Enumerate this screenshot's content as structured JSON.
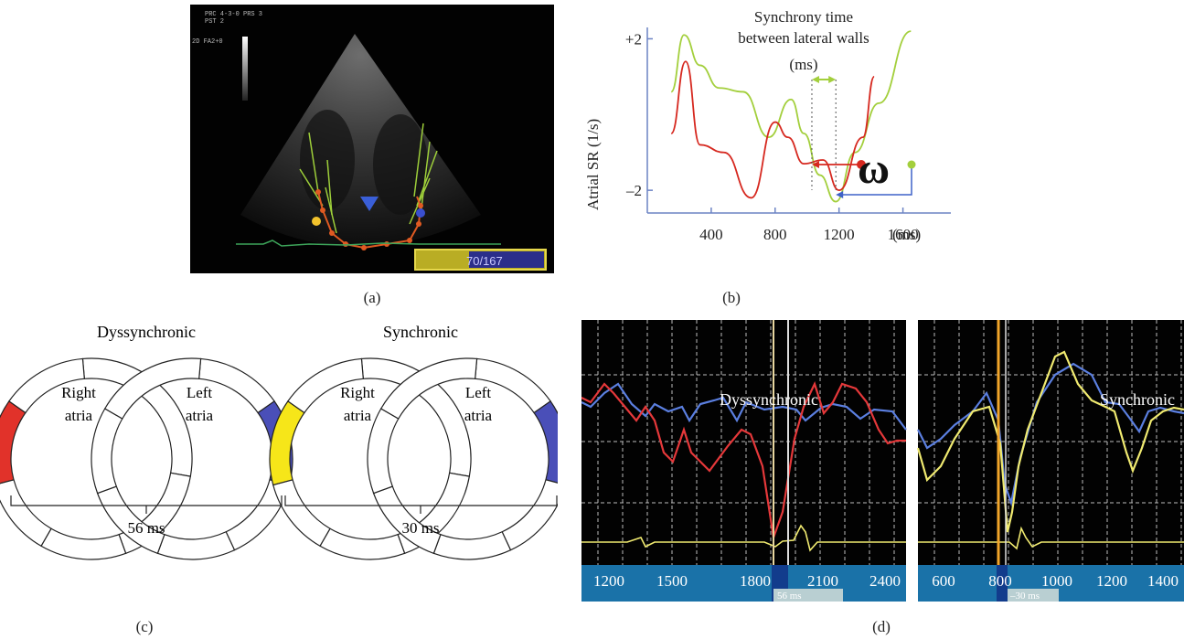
{
  "panel_a": {
    "caption": "(a)",
    "overlay_text_1": "PRC 4-3-0  PRS 3",
    "overlay_text_2": "PST 2",
    "overlay_text_3": "2D FA2+0",
    "frame_counter": "70/167"
  },
  "panel_b": {
    "caption": "(b)",
    "annotation_line1": "Synchrony time",
    "annotation_line2": "between lateral walls",
    "annotation_line3": "(ms)",
    "omega_symbol": "ω",
    "colors": {
      "green": "#a3cf3c",
      "red": "#d6281f",
      "blue": "#3f62c8",
      "axis": "#6b83c4"
    },
    "chart_data": {
      "type": "line",
      "title": "",
      "xlabel": "(ms)",
      "ylabel": "Atrial SR (1/s)",
      "x_ticks": [
        "400",
        "800",
        "1200",
        "1600"
      ],
      "y_ticks": [
        "+2",
        "–2"
      ],
      "xlim": [
        0,
        1900
      ],
      "ylim": [
        -2.6,
        2.3
      ],
      "series": [
        {
          "color": "#a3cf3c",
          "x": [
            150,
            230,
            330,
            450,
            600,
            760,
            900,
            980,
            1080,
            1180,
            1300,
            1450,
            1650
          ],
          "y": [
            0.6,
            2.1,
            1.3,
            0.7,
            0.6,
            -0.6,
            0.4,
            -0.5,
            -1.6,
            -2.3,
            -1.0,
            0.3,
            2.2
          ]
        },
        {
          "color": "#d6281f",
          "x": [
            150,
            240,
            330,
            480,
            650,
            800,
            880,
            980,
            1100,
            1200,
            1350,
            1420
          ],
          "y": [
            -0.5,
            1.4,
            -0.8,
            -1.0,
            -2.2,
            -0.2,
            -0.6,
            -1.3,
            -1.2,
            -2.0,
            -0.6,
            1.0
          ]
        }
      ]
    }
  },
  "panel_c": {
    "caption": "(c)",
    "dys_title": "Dyssynchronic",
    "syn_title": "Synchronic",
    "right_atria": [
      "Right",
      "atria"
    ],
    "left_atria": [
      "Left",
      "atria"
    ],
    "dys_time": "56 ms",
    "syn_time": "30 ms",
    "colors": {
      "red": "#e1322a",
      "blue": "#4a4fb8",
      "yellow": "#f6e619"
    }
  },
  "panel_d": {
    "caption": "(d)",
    "left_label": "Dyssynchronic",
    "right_label": "Synchronic",
    "left_ticks": [
      "1200",
      "1500",
      "1800",
      "2100",
      "2400"
    ],
    "right_ticks": [
      "600",
      "800",
      "1000",
      "1200",
      "1400"
    ],
    "left_time_box": "56 ms",
    "right_time_box": "–30 ms",
    "colors": {
      "bar": "#1a72a8",
      "red": "#e5383a",
      "blue": "#5b7fe0",
      "yellow": "#f0ea70"
    }
  }
}
